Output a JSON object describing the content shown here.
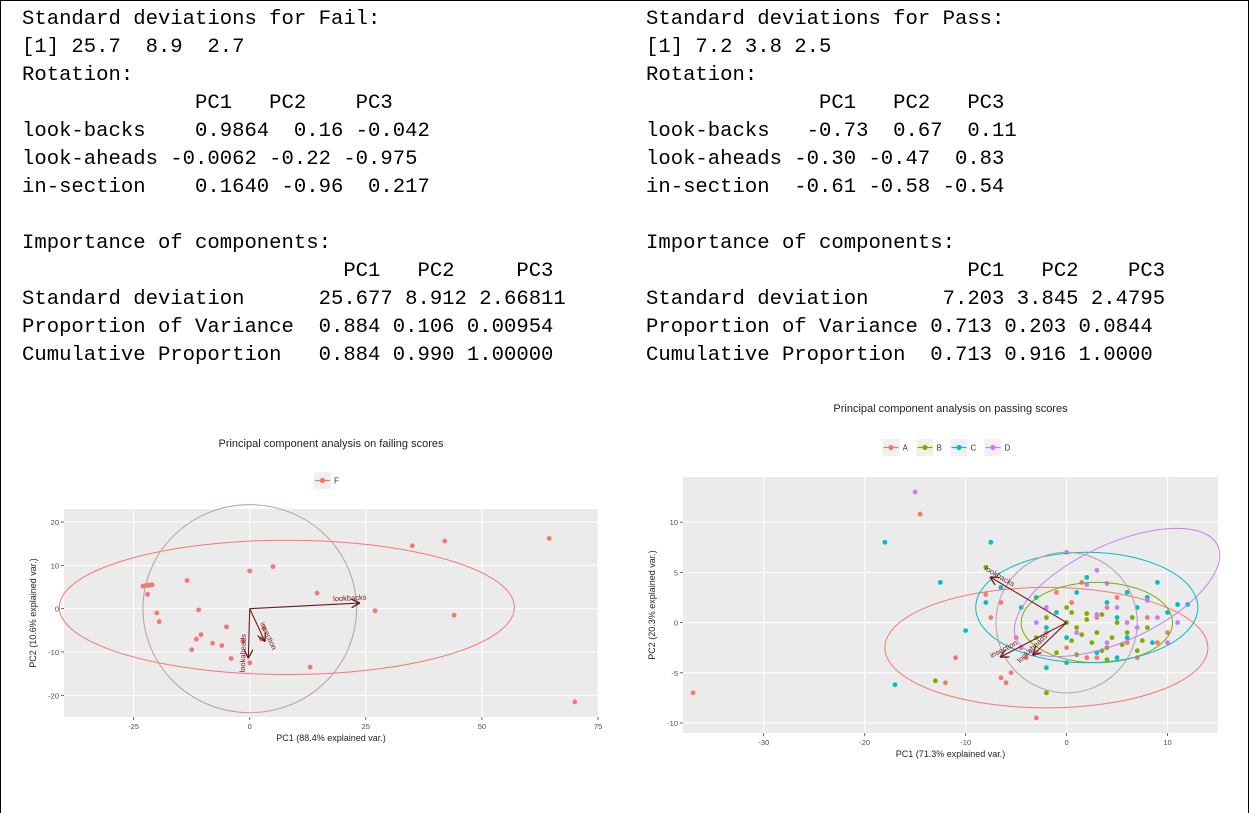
{
  "fail_text": {
    "lines": [
      "Standard deviations for Fail:",
      "[1] 25.7  8.9  2.7",
      "Rotation:",
      "              PC1   PC2    PC3",
      "look-backs    0.9864  0.16 -0.042",
      "look-aheads -0.0062 -0.22 -0.975",
      "in-section    0.1640 -0.96  0.217",
      "",
      "Importance of components:",
      "                          PC1   PC2     PC3",
      "Standard deviation      25.677 8.912 2.66811",
      "Proportion of Variance  0.884 0.106 0.00954",
      "Cumulative Proportion   0.884 0.990 1.00000"
    ]
  },
  "pass_text": {
    "lines": [
      "Standard deviations for Pass:",
      "[1] 7.2 3.8 2.5",
      "Rotation:",
      "              PC1   PC2   PC3",
      "look-backs   -0.73  0.67  0.11",
      "look-aheads -0.30 -0.47  0.83",
      "in-section  -0.61 -0.58 -0.54",
      "",
      "Importance of components:",
      "                          PC1   PC2    PC3",
      "Standard deviation      7.203 3.845 2.4795",
      "Proportion of Variance 0.713 0.203 0.0844",
      "Cumulative Proportion  0.713 0.916 1.0000"
    ]
  },
  "chart_data": [
    {
      "type": "scatter",
      "title": "Principal component analysis on failing scores",
      "xlabel": "PC1 (88.4% explained var.)",
      "ylabel": "PC2 (10.6% explained var.)",
      "xlim": [
        -40,
        75
      ],
      "ylim": [
        -25,
        23
      ],
      "xticks": [
        -25,
        0,
        25,
        50,
        75
      ],
      "yticks": [
        -20,
        -10,
        0,
        10,
        20
      ],
      "grid": true,
      "legend_position": "top",
      "series": [
        {
          "name": "F",
          "color": "#f8766d",
          "points": [
            [
              -23,
              5.2
            ],
            [
              -22.5,
              5.3
            ],
            [
              -22,
              5.4
            ],
            [
              -21.5,
              5.4
            ],
            [
              -21,
              5.5
            ],
            [
              -22,
              3.3
            ],
            [
              -20,
              -1
            ],
            [
              -19.5,
              -3
            ],
            [
              -13.5,
              6.5
            ],
            [
              -11,
              -0.3
            ],
            [
              -12.5,
              -9.5
            ],
            [
              -11.5,
              -7
            ],
            [
              -10.5,
              -6
            ],
            [
              -8,
              -8
            ],
            [
              -6,
              -8.5
            ],
            [
              -5,
              -4.2
            ],
            [
              -4,
              -11.5
            ],
            [
              -1.5,
              -7.5
            ],
            [
              0,
              8.7
            ],
            [
              0,
              -12.5
            ],
            [
              2.5,
              -7
            ],
            [
              3,
              -4.5
            ],
            [
              5,
              9.7
            ],
            [
              13,
              -13.5
            ],
            [
              14.5,
              3.6
            ],
            [
              27,
              -0.5
            ],
            [
              35,
              14.5
            ],
            [
              42,
              15.6
            ],
            [
              44,
              -1.5
            ],
            [
              64.5,
              16.2
            ],
            [
              70,
              -21.5
            ]
          ]
        }
      ],
      "ellipses": [
        {
          "kind": "normal",
          "color": "#f8766d",
          "center": [
            8,
            0.3
          ],
          "rx": 49,
          "ry": 15.5
        },
        {
          "kind": "correlation-circle",
          "color": "#b8a0a0",
          "center": [
            0,
            0
          ],
          "rx": 23,
          "ry": 24
        }
      ],
      "arrows": [
        {
          "label": "lookbacks",
          "end": [
            23.5,
            1.3
          ]
        },
        {
          "label": "lookaheads",
          "end": [
            -0.3,
            -11.2
          ]
        },
        {
          "label": "insection",
          "end": [
            3.2,
            -7.4
          ]
        }
      ]
    },
    {
      "type": "scatter",
      "title": "Principal component analysis on passing scores",
      "xlabel": "PC1 (71.3% explained var.)",
      "ylabel": "PC2 (20.3% explained var.)",
      "xlim": [
        -38,
        15
      ],
      "ylim": [
        -11,
        14.5
      ],
      "xticks": [
        -30,
        -20,
        -10,
        0,
        10
      ],
      "yticks": [
        -10,
        -5,
        0,
        5,
        10
      ],
      "grid": true,
      "legend_position": "top",
      "series": [
        {
          "name": "A",
          "color": "#f8766d",
          "points": [
            [
              -37,
              -7
            ],
            [
              -14.5,
              10.8
            ],
            [
              -7.5,
              0.5
            ],
            [
              -6.5,
              2
            ],
            [
              -5,
              -1.5
            ],
            [
              -4.5,
              -2.5
            ],
            [
              -3,
              -3
            ],
            [
              -5.5,
              -5
            ],
            [
              -6,
              -6
            ],
            [
              -3,
              -9.5
            ],
            [
              -4,
              -3.5
            ],
            [
              -11,
              -3.5
            ],
            [
              -12,
              -6
            ],
            [
              -6.5,
              -5.5
            ],
            [
              1,
              -1
            ],
            [
              2,
              -3.5
            ],
            [
              3,
              0.5
            ],
            [
              4,
              1.5
            ],
            [
              5,
              2.5
            ],
            [
              6,
              -2
            ],
            [
              7,
              -3.5
            ],
            [
              8,
              0.5
            ],
            [
              9,
              -2
            ],
            [
              10,
              -1
            ],
            [
              1.5,
              4
            ],
            [
              -1,
              3
            ],
            [
              -2,
              -1
            ],
            [
              0,
              -2.5
            ],
            [
              0.5,
              2
            ],
            [
              -8,
              2.8
            ],
            [
              3,
              -3.5
            ]
          ]
        },
        {
          "name": "B",
          "color": "#7cae00",
          "points": [
            [
              -13,
              -5.8
            ],
            [
              -2,
              -7
            ],
            [
              0,
              0
            ],
            [
              0.5,
              1
            ],
            [
              1,
              -0.5
            ],
            [
              1.5,
              -1.2
            ],
            [
              2,
              0.3
            ],
            [
              2.5,
              -2
            ],
            [
              3,
              -1
            ],
            [
              3.5,
              0.8
            ],
            [
              4,
              -2.5
            ],
            [
              4.5,
              -1.5
            ],
            [
              5,
              0
            ],
            [
              5.5,
              -2.2
            ],
            [
              6,
              -1
            ],
            [
              6.5,
              0.5
            ],
            [
              7,
              -2.8
            ],
            [
              7.5,
              -1.8
            ],
            [
              8,
              -0.5
            ],
            [
              -1,
              -3
            ],
            [
              -2,
              0.5
            ],
            [
              -3,
              -1.5
            ],
            [
              0,
              1.5
            ],
            [
              1,
              -3.2
            ],
            [
              4,
              -3.7
            ],
            [
              -8,
              5.5
            ],
            [
              2,
              0.9
            ],
            [
              3.5,
              -2.8
            ],
            [
              0.5,
              -1.8
            ]
          ]
        },
        {
          "name": "C",
          "color": "#00bfc4",
          "points": [
            [
              -18,
              8
            ],
            [
              -17,
              -6.2
            ],
            [
              -12.5,
              4
            ],
            [
              -10,
              -0.8
            ],
            [
              -8,
              2
            ],
            [
              -6.5,
              3.5
            ],
            [
              -4.5,
              1.5
            ],
            [
              -3,
              2.5
            ],
            [
              -2,
              -0.5
            ],
            [
              -1,
              1
            ],
            [
              0,
              -1.5
            ],
            [
              1,
              3
            ],
            [
              2,
              4.5
            ],
            [
              3,
              -3
            ],
            [
              4,
              2
            ],
            [
              5,
              0.5
            ],
            [
              6,
              3
            ],
            [
              7,
              1.5
            ],
            [
              8,
              2.5
            ],
            [
              9,
              4
            ],
            [
              10,
              1
            ],
            [
              11,
              1.8
            ],
            [
              12,
              1.8
            ],
            [
              -2,
              -4.5
            ],
            [
              0,
              -4
            ],
            [
              5,
              -3.5
            ],
            [
              6,
              -1.5
            ],
            [
              -7.5,
              8
            ],
            [
              8.5,
              -2
            ]
          ]
        },
        {
          "name": "D",
          "color": "#c77cff",
          "points": [
            [
              -15,
              13
            ],
            [
              -3,
              0
            ],
            [
              -2,
              1.5
            ],
            [
              0,
              7
            ],
            [
              2,
              3.8
            ],
            [
              3,
              5.2
            ],
            [
              4,
              3.9
            ],
            [
              5,
              1.5
            ],
            [
              6,
              0
            ],
            [
              7,
              -0.5
            ],
            [
              8,
              2.2
            ],
            [
              9,
              0.5
            ],
            [
              10,
              -2
            ],
            [
              11,
              0
            ],
            [
              3,
              0.8
            ],
            [
              1,
              -1
            ],
            [
              4,
              -2
            ]
          ]
        }
      ],
      "ellipses": [
        {
          "kind": "normal",
          "color": "#f8766d",
          "center": [
            -2,
            -2.5
          ],
          "rx": 16,
          "ry": 6
        },
        {
          "kind": "normal",
          "color": "#7cae00",
          "center": [
            3,
            0
          ],
          "rx": 7.5,
          "ry": 4
        },
        {
          "kind": "normal",
          "color": "#00bfc4",
          "center": [
            2,
            1.5
          ],
          "rx": 11,
          "ry": 5.5
        },
        {
          "kind": "normal",
          "color": "#c77cff",
          "center": [
            5,
            3
          ],
          "rx": 11,
          "ry": 4.8,
          "rotation": -25
        },
        {
          "kind": "correlation-circle",
          "color": "#b8a0a0",
          "center": [
            0,
            0
          ],
          "rx": 7,
          "ry": 7
        }
      ],
      "arrows": [
        {
          "label": "lookbacks",
          "end": [
            -7.5,
            4.5
          ]
        },
        {
          "label": "lookaheads",
          "end": [
            -3.3,
            -3.2
          ]
        },
        {
          "label": "insection",
          "end": [
            -6.5,
            -3.4
          ]
        }
      ]
    }
  ]
}
